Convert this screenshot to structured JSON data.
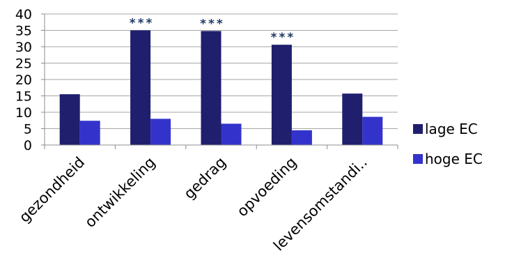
{
  "chart_data": {
    "type": "bar",
    "categories": [
      "gezondheid",
      "ontwikkeling",
      "gedrag",
      "opvoeding",
      "levensomstandi.."
    ],
    "series": [
      {
        "name": "lage EC",
        "values": [
          15.5,
          35.0,
          34.8,
          30.6,
          15.7
        ],
        "color": "#1f1f6e"
      },
      {
        "name": "hoge EC",
        "values": [
          7.4,
          8.0,
          6.5,
          4.5,
          8.6
        ],
        "color": "#3333cc"
      }
    ],
    "significance": [
      "",
      "***",
      "***",
      "***",
      ""
    ],
    "ylim": [
      0,
      40
    ],
    "yticks": [
      0,
      5,
      10,
      15,
      20,
      25,
      30,
      35,
      40
    ],
    "grid": true,
    "legend_position": "right",
    "title": "",
    "xlabel": "",
    "ylabel": ""
  }
}
